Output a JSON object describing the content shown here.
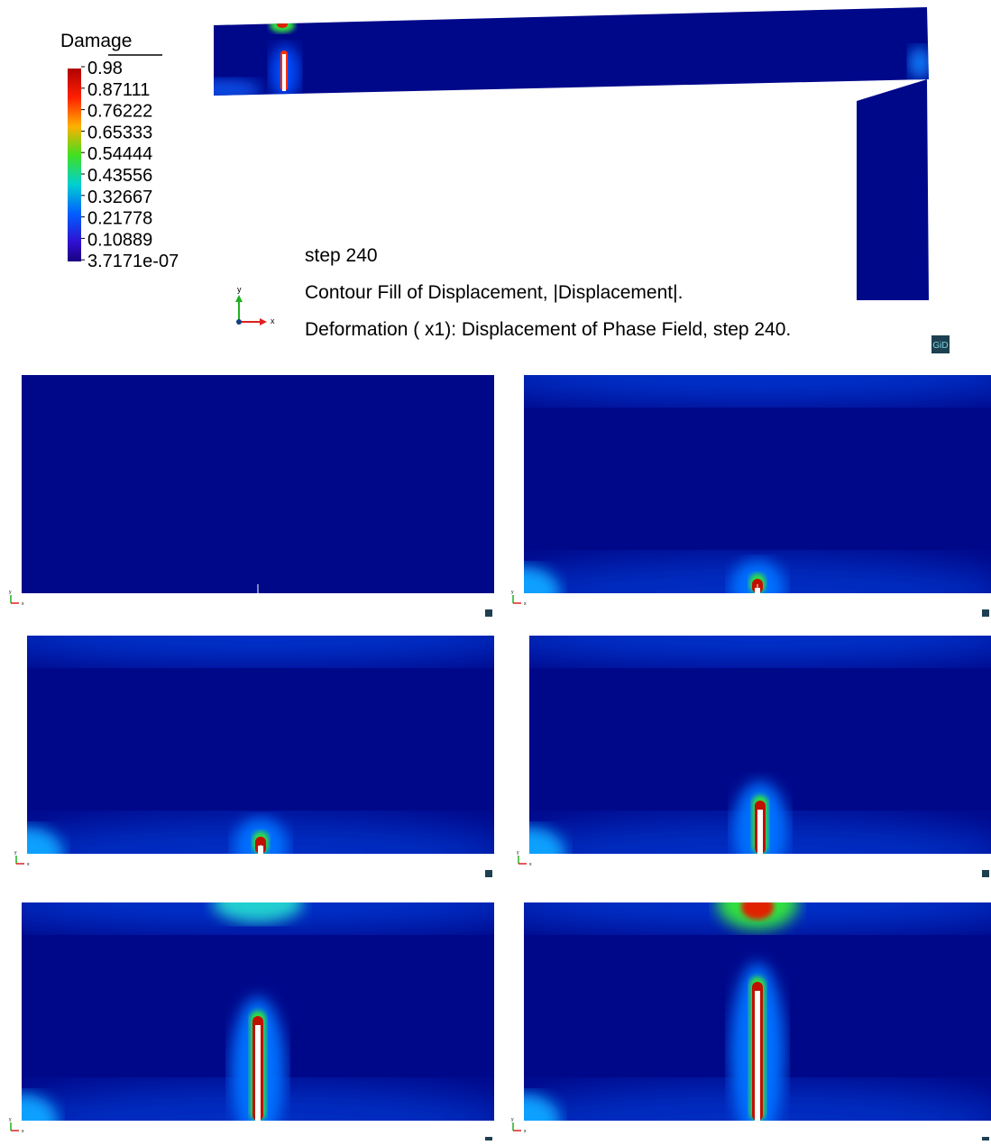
{
  "legend": {
    "title": "Damage",
    "labels": [
      "0.98",
      "0.87111",
      "0.76222",
      "0.65333",
      "0.54444",
      "0.43556",
      "0.32667",
      "0.21778",
      "0.10889",
      "3.7171e-07"
    ]
  },
  "annotations": {
    "step": "step 240",
    "contour": "Contour Fill of Displacement, |Displacement|.",
    "deformation": "Deformation ( x1): Displacement of Phase Field, step 240."
  },
  "axes": {
    "y": "y",
    "x": "x"
  },
  "logo": "GiD"
}
